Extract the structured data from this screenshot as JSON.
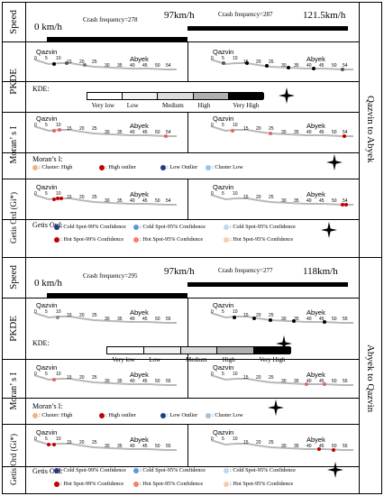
{
  "directions": [
    "Qazvin to Abyek",
    "Abyek to Qazvin"
  ],
  "rows": {
    "speed": "Speed",
    "pkde": "PKDE",
    "morans": "Moran’ s I",
    "getis": "Getis Ord (Gi*)"
  },
  "top": {
    "speed_labels": [
      "0 km/h",
      "97km/h",
      "121.5km/h"
    ],
    "crash_left": "Crash frequency=278",
    "crash_right": "Crash frequency=287"
  },
  "bottom": {
    "speed_labels": [
      "0 km/h",
      "97km/h",
      "118km/h"
    ],
    "crash_left": "Crash frequency=295",
    "crash_right": "Crash frequency=277"
  },
  "map": {
    "start": "Qazvin",
    "end": "Abyek",
    "ticks_top": [
      "0",
      "5",
      "10",
      "15",
      "20",
      "25",
      "30",
      "35",
      "40",
      "45",
      "50",
      "54"
    ],
    "ticks_bottom": [
      "0",
      "5",
      "10",
      "15",
      "20",
      "25",
      "30",
      "35",
      "40",
      "45",
      "50",
      "55"
    ]
  },
  "kde": {
    "title": "KDE:",
    "levels": [
      "Very low",
      "Low",
      "Medium",
      "High",
      "Very High"
    ],
    "colors": [
      "#ffffff",
      "#f2f2f2",
      "#dcdcdc",
      "#b0b0b0",
      "#000000"
    ]
  },
  "morans": {
    "title": "Moran’s I:",
    "items": [
      {
        "label": ": Cluster: High",
        "color": "#f4b183"
      },
      {
        "label": ": High outlier",
        "color": "#c00000"
      },
      {
        "label": ": Low Outlier",
        "color": "#1f3c88"
      },
      {
        "label": ": Cluster Low",
        "color": "#9dc3e6"
      }
    ]
  },
  "getis": {
    "title": "Getis Ord:",
    "items": [
      {
        "label": ": Cold Spot-99% Confidence",
        "color": "#1f3c88"
      },
      {
        "label": ": Cold Spot-95% Confidence",
        "color": "#5b9bd5"
      },
      {
        "label": ": Cold Spot-95% Confidence",
        "color": "#bdd7ee"
      },
      {
        "label": ": Hot Spot-99% Confidence",
        "color": "#c00000"
      },
      {
        "label": ": Hot Spot-95% Confidence",
        "color": "#f4826b"
      },
      {
        "label": ": Hot Spot-95% Confidence",
        "color": "#f8cbad"
      }
    ]
  },
  "colors": {
    "road": "#b8b8b8",
    "high": "#e06666",
    "hot": "#c00000",
    "dark": "#000000"
  }
}
